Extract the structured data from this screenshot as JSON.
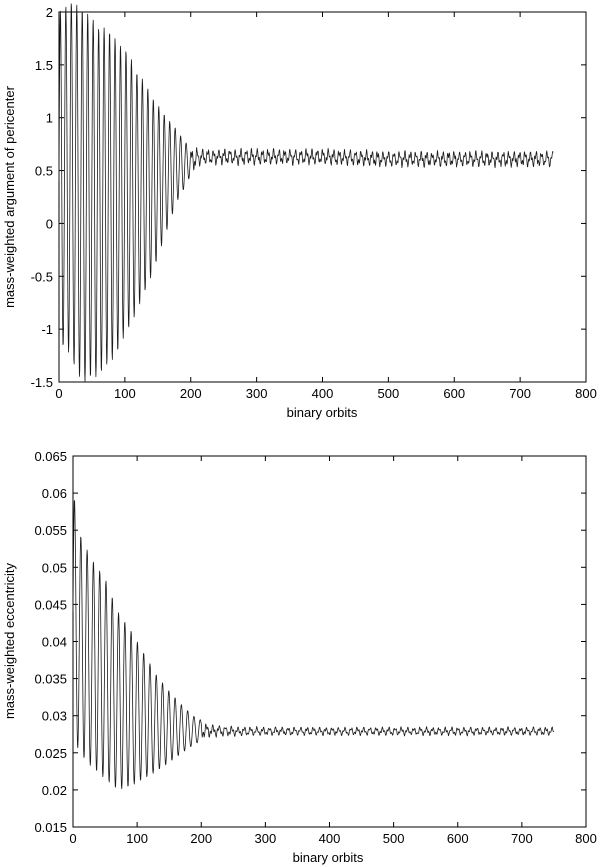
{
  "chart_data": [
    {
      "type": "line",
      "xlabel": "binary orbits",
      "ylabel": "mass-weighted argument of pericenter",
      "xlim": [
        0,
        800
      ],
      "ylim": [
        -1.5,
        2
      ],
      "xticks": [
        "0",
        "100",
        "200",
        "300",
        "400",
        "500",
        "600",
        "700",
        "800"
      ],
      "yticks": [
        "-1.5",
        "-1",
        "-0.5",
        "0",
        "0.5",
        "1",
        "1.5",
        "2"
      ],
      "grid": false,
      "legend": "none",
      "series": [
        {
          "x": [
            0,
            10,
            20,
            30,
            40,
            50,
            60,
            70,
            80,
            90,
            100,
            110,
            120,
            130,
            140,
            150,
            160,
            170,
            180,
            190,
            200,
            210,
            220,
            230,
            240,
            250,
            300,
            400,
            500,
            600,
            700,
            750
          ],
          "center": [
            0.4,
            0.45,
            0.4,
            0.3,
            0.25,
            0.25,
            0.2,
            0.25,
            0.25,
            0.25,
            0.3,
            0.3,
            0.3,
            0.35,
            0.35,
            0.4,
            0.45,
            0.5,
            0.55,
            0.55,
            0.6,
            0.62,
            0.63,
            0.63,
            0.63,
            0.63,
            0.63,
            0.63,
            0.61,
            0.61,
            0.61,
            0.61
          ],
          "amplitude": [
            1.6,
            1.6,
            1.7,
            1.75,
            1.75,
            1.7,
            1.65,
            1.6,
            1.55,
            1.45,
            1.35,
            1.25,
            1.1,
            1.0,
            0.85,
            0.72,
            0.58,
            0.45,
            0.33,
            0.22,
            0.14,
            0.1,
            0.08,
            0.08,
            0.08,
            0.08,
            0.08,
            0.08,
            0.08,
            0.08,
            0.08,
            0.08
          ],
          "period": 8.3
        }
      ]
    },
    {
      "type": "line",
      "xlabel": "binary orbits",
      "ylabel": "mass-weighted eccentricity",
      "xlim": [
        0,
        800
      ],
      "ylim": [
        0.015,
        0.065
      ],
      "xticks": [
        "0",
        "100",
        "200",
        "300",
        "400",
        "500",
        "600",
        "700",
        "800"
      ],
      "yticks": [
        "0.015",
        "0.02",
        "0.025",
        "0.03",
        "0.035",
        "0.04",
        "0.045",
        "0.05",
        "0.055",
        "0.06",
        "0.065"
      ],
      "grid": false,
      "legend": "none",
      "series": [
        {
          "x": [
            0,
            5,
            15,
            30,
            50,
            70,
            90,
            110,
            130,
            150,
            170,
            180,
            190,
            200,
            210,
            250,
            300,
            400,
            500,
            600,
            700,
            750
          ],
          "center": [
            0.044,
            0.041,
            0.039,
            0.037,
            0.035,
            0.032,
            0.031,
            0.03,
            0.029,
            0.0285,
            0.0282,
            0.0281,
            0.028,
            0.028,
            0.028,
            0.0279,
            0.0279,
            0.0279,
            0.0279,
            0.0279,
            0.0279,
            0.0279
          ],
          "amplitude": [
            0.018,
            0.015,
            0.0145,
            0.014,
            0.0135,
            0.012,
            0.0105,
            0.0085,
            0.0065,
            0.0048,
            0.0032,
            0.0025,
            0.0018,
            0.0014,
            0.001,
            0.0007,
            0.0006,
            0.0006,
            0.0006,
            0.0006,
            0.0006,
            0.0006
          ],
          "period": 9.8
        }
      ]
    }
  ]
}
